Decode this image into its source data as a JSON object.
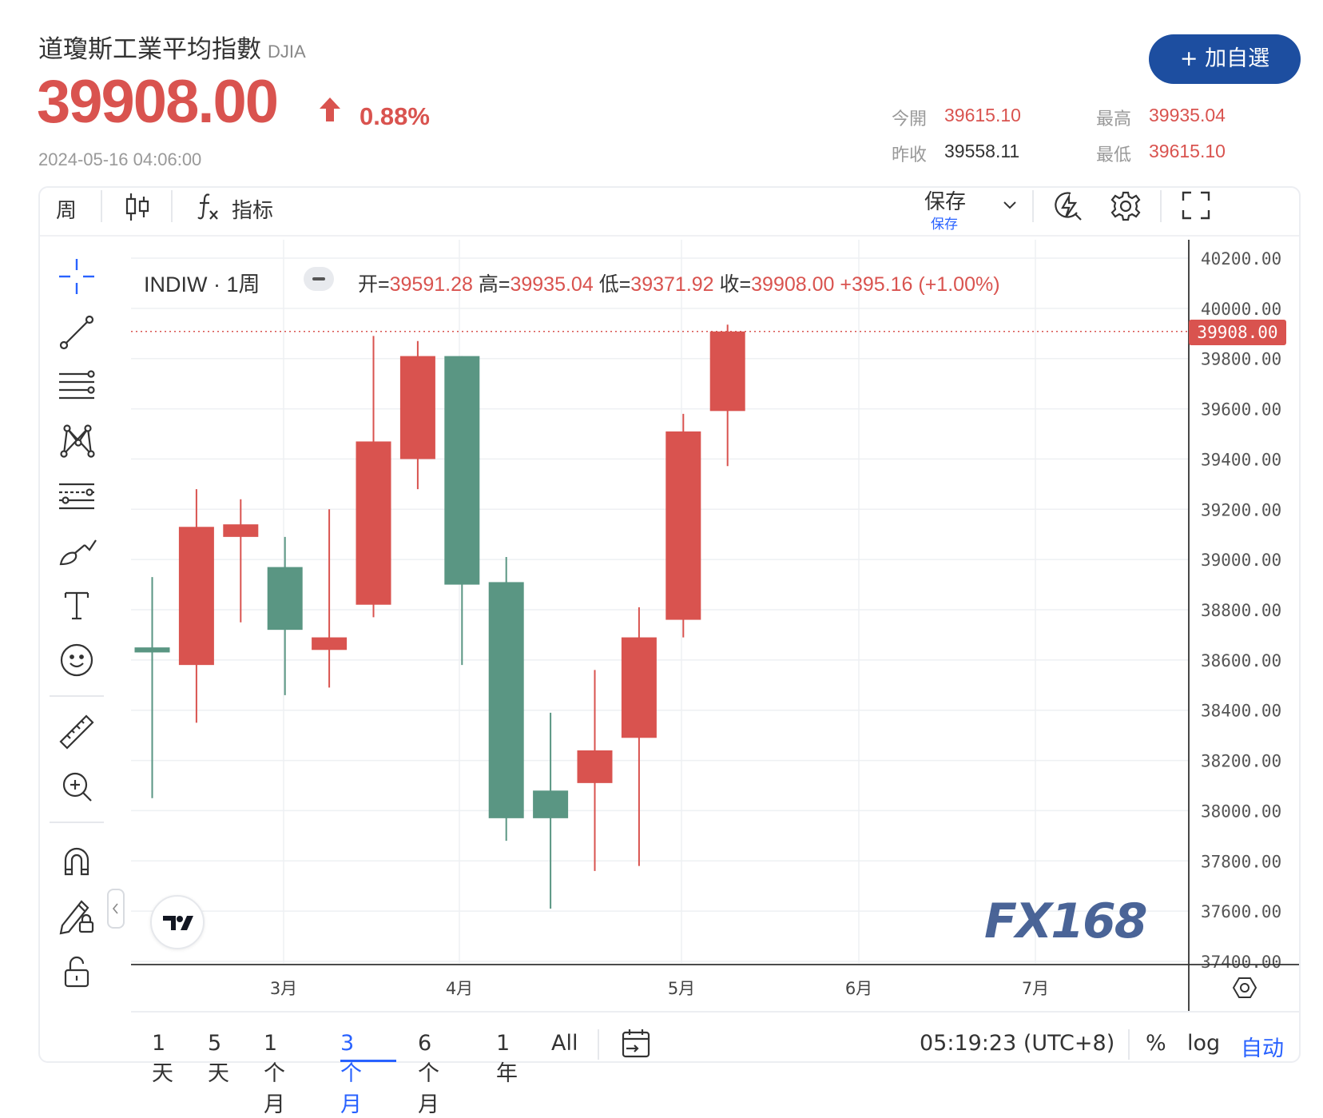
{
  "header": {
    "name": "道瓊斯工業平均指數",
    "symbol": "DJIA",
    "price": "39908.00",
    "change_pct": "0.88%",
    "timestamp": "2024-05-16 04:06:00",
    "add_button": "+ 加自選",
    "quote": {
      "open_label": "今開",
      "open": "39615.10",
      "high_label": "最高",
      "high": "39935.04",
      "prev_close_label": "昨收",
      "prev_close": "39558.11",
      "low_label": "最低",
      "low": "39615.10"
    }
  },
  "toolbar": {
    "interval": "周",
    "indicators_label": "指标",
    "save_label": "保存",
    "save_sub": "保存"
  },
  "legend": {
    "symbol": "INDIW · 1周",
    "open_label": "开=",
    "open": "39591.28",
    "high_label": "高=",
    "high": "39935.04",
    "low_label": "低=",
    "low": "39371.92",
    "close_label": "收=",
    "close": "39908.00",
    "change": "+395.16 (+1.00%)"
  },
  "watermark": "FX168",
  "last_price_tag": "39908.00",
  "bottom_bar": {
    "ranges": [
      "1天",
      "5天",
      "1个月",
      "3个月",
      "6个月",
      "1年",
      "All"
    ],
    "active_range": "3个月",
    "clock": "05:19:23 (UTC+8)",
    "percent": "%",
    "log": "log",
    "auto": "自动"
  },
  "colors": {
    "up": "#d9534f",
    "down": "#5a9683",
    "accent": "#2962ff",
    "brand": "#1d4ea0"
  },
  "chart_data": {
    "type": "candlestick",
    "interval": "weekly",
    "ylim": [
      37400,
      40200
    ],
    "y_ticks": [
      "40200.00",
      "40000.00",
      "39800.00",
      "39600.00",
      "39400.00",
      "39200.00",
      "39000.00",
      "38800.00",
      "38600.00",
      "38400.00",
      "38200.00",
      "38000.00",
      "37800.00",
      "37600.00",
      "37400.00"
    ],
    "x_tick_labels": [
      "3月",
      "4月",
      "5月",
      "6月",
      "7月"
    ],
    "candles": [
      {
        "open": 38650,
        "high": 38930,
        "low": 38050,
        "close": 38630
      },
      {
        "open": 38580,
        "high": 39280,
        "low": 38350,
        "close": 39130
      },
      {
        "open": 39090,
        "high": 39240,
        "low": 38750,
        "close": 39140
      },
      {
        "open": 38970,
        "high": 39090,
        "low": 38460,
        "close": 38720
      },
      {
        "open": 38640,
        "high": 39200,
        "low": 38490,
        "close": 38690
      },
      {
        "open": 38820,
        "high": 39890,
        "low": 38770,
        "close": 39470
      },
      {
        "open": 39400,
        "high": 39870,
        "low": 39280,
        "close": 39810
      },
      {
        "open": 39810,
        "high": 39810,
        "low": 38580,
        "close": 38900
      },
      {
        "open": 38910,
        "high": 39010,
        "low": 37880,
        "close": 37970
      },
      {
        "open": 38080,
        "high": 38390,
        "low": 37610,
        "close": 37970
      },
      {
        "open": 38110,
        "high": 38560,
        "low": 37760,
        "close": 38240
      },
      {
        "open": 38290,
        "high": 38810,
        "low": 37780,
        "close": 38690
      },
      {
        "open": 38760,
        "high": 39580,
        "low": 38690,
        "close": 39510
      },
      {
        "open": 39591.28,
        "high": 39935.04,
        "low": 39371.92,
        "close": 39908.0
      }
    ]
  }
}
